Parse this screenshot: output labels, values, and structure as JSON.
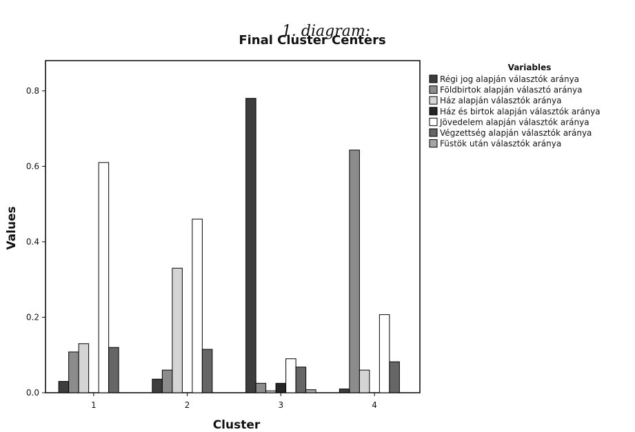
{
  "caption": "1. diagram:",
  "chart_data": {
    "type": "bar",
    "title": "Final Cluster Centers",
    "xlabel": "Cluster",
    "ylabel": "Values",
    "categories": [
      "1",
      "2",
      "3",
      "4"
    ],
    "ylim": [
      0,
      0.88
    ],
    "yticks": [
      "0.0",
      "0.2",
      "0.4",
      "0.6",
      "0.8"
    ],
    "ytick_values": [
      0,
      0.2,
      0.4,
      0.6,
      0.8
    ],
    "grid": false,
    "legend": {
      "title": "Variables",
      "placement": "right"
    },
    "series": [
      {
        "name": "Régi jog alapján választók aránya",
        "color": "#3d3d3d",
        "values": [
          0.03,
          0.036,
          0.78,
          0.01
        ]
      },
      {
        "name": "Földbirtok alapján választó aránya",
        "color": "#8c8c8c",
        "values": [
          0.108,
          0.06,
          0.025,
          0.643
        ]
      },
      {
        "name": "Ház alapján választók aránya",
        "color": "#d4d4d4",
        "values": [
          0.13,
          0.33,
          0.005,
          0.06
        ]
      },
      {
        "name": "Ház és birtok alapján választók aránya",
        "color": "#262626",
        "values": [
          0.0,
          0.0,
          0.025,
          0.0
        ]
      },
      {
        "name": "Jövedelem alapján választók aránya",
        "color": "#ffffff",
        "values": [
          0.61,
          0.46,
          0.09,
          0.207
        ]
      },
      {
        "name": "Végzettség alapján választók aránya",
        "color": "#666666",
        "values": [
          0.12,
          0.115,
          0.068,
          0.082
        ]
      },
      {
        "name": "Füstök után választók aránya",
        "color": "#a6a6a6",
        "values": [
          0.0,
          0.0,
          0.008,
          0.0
        ]
      }
    ]
  }
}
